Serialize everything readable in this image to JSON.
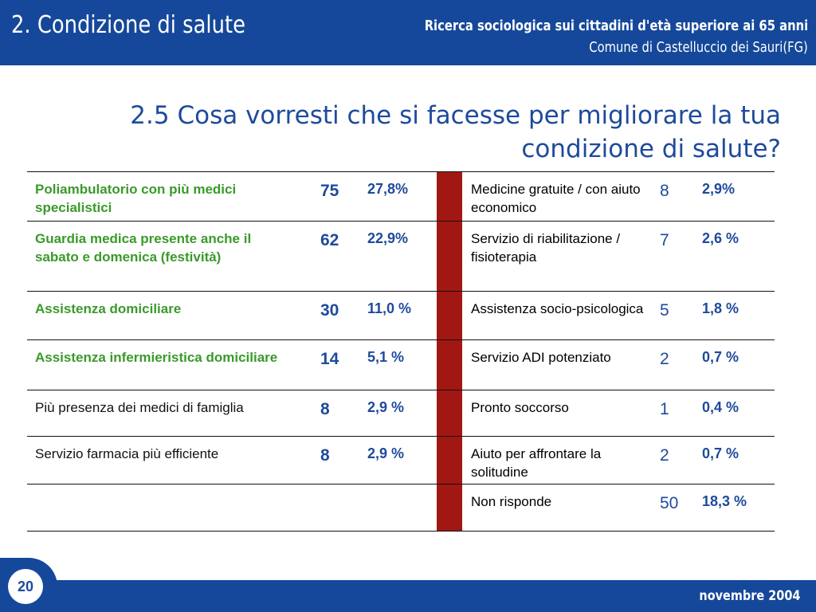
{
  "header": {
    "title": "2. Condizione di salute",
    "subtitle_line1": "Ricerca sociologica sui cittadini d'età superiore ai 65 anni",
    "subtitle_line2": "Comune di Castelluccio dei Sauri(FG)"
  },
  "page_title": "2.5 Cosa vorresti che si facesse per migliorare la tua condizione di salute?",
  "rows": [
    {
      "left_label": "Poliambulatorio con più medici specialistici",
      "left_count": "75",
      "left_pct": "27,8%",
      "right_label": "Medicine gratuite / con aiuto economico",
      "right_count": "8",
      "right_pct": "2,9%"
    },
    {
      "left_label": "Guardia medica presente anche il sabato e  domenica (festività)",
      "left_count": "62",
      "left_pct": "22,9%",
      "right_label": "Servizio di riabilitazione / fisioterapia",
      "right_count": "7",
      "right_pct": "2,6 %"
    },
    {
      "left_label": "Assistenza domiciliare",
      "left_count": "30",
      "left_pct": "11,0 %",
      "right_label": "Assistenza socio-psicologica",
      "right_count": "5",
      "right_pct": "1,8 %"
    },
    {
      "left_label": "Assistenza infermieristica domiciliare",
      "left_count": "14",
      "left_pct": "5,1 %",
      "right_label": "Servizio ADI potenziato",
      "right_count": "2",
      "right_pct": "0,7 %"
    },
    {
      "left_label": "Più presenza dei medici di famiglia",
      "left_count": "8",
      "left_pct": "2,9 %",
      "right_label": "Pronto soccorso",
      "right_count": "1",
      "right_pct": "0,4 %"
    },
    {
      "left_label": "Servizio farmacia più efficiente",
      "left_count": "8",
      "left_pct": "2,9 %",
      "right_label": "Aiuto per affrontare la solitudine",
      "right_count": "2",
      "right_pct": "0,7 %"
    },
    {
      "left_label": "",
      "left_count": "",
      "left_pct": "",
      "right_label": "Non risponde",
      "right_count": "50",
      "right_pct": "18,3 %"
    }
  ],
  "colors": {
    "header_blue": "#15489a",
    "green_label": "#3a9a2a",
    "divider_red": "#a11813",
    "value_blue": "#1e4a9c"
  },
  "footer": {
    "date": "novembre 2004",
    "page_number": "20"
  }
}
